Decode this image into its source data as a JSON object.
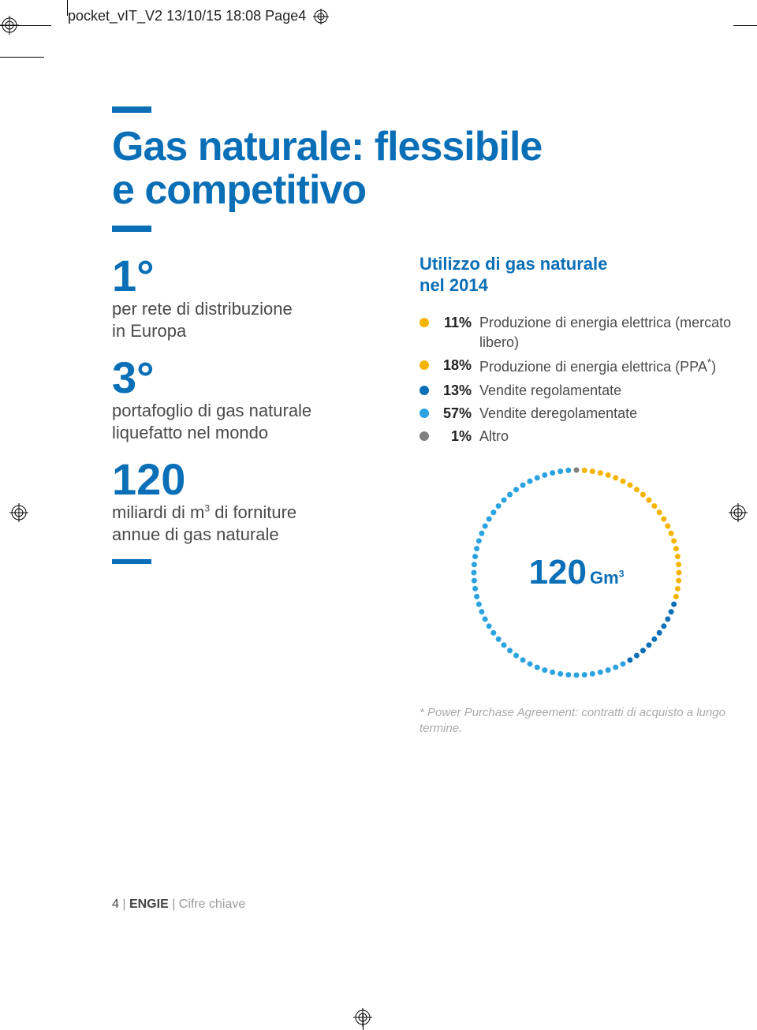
{
  "header": "pocket_vIT_V2  13/10/15  18:08  Page4",
  "title_l1": "Gas naturale: flessibile",
  "title_l2": "e competitivo",
  "stats": [
    {
      "num": "1°",
      "line1": "per rete di distribuzione",
      "line2": "in Europa"
    },
    {
      "num": "3°",
      "line1": "portafoglio di gas naturale",
      "line2": "liquefatto nel mondo"
    },
    {
      "num": "120",
      "line1": "miliardi di m",
      "sup": "3",
      "line1b": " di forniture",
      "line2": "annue di gas naturale"
    }
  ],
  "subhead_l1": "Utilizzo di gas naturale",
  "subhead_l2": "nel 2014",
  "legend": [
    {
      "color": "#f5b400",
      "pct": "11%",
      "label": "Produzione di energia elettrica (mercato libero)"
    },
    {
      "color": "#f5b400",
      "pct": "18%",
      "label": "Produzione di energia elettrica (PPA*)"
    },
    {
      "color": "#0a6fb6",
      "pct": "13%",
      "label": "Vendite regolamentate"
    },
    {
      "color": "#2aa3e0",
      "pct": "57%",
      "label": "Vendite deregolamentate"
    },
    {
      "color": "#808080",
      "pct": "1%",
      "label": "Altro"
    }
  ],
  "donut": {
    "value": "120",
    "unit": "Gm",
    "unit_sup": "3",
    "segments": [
      {
        "pct": 1,
        "color": "#808080"
      },
      {
        "pct": 11,
        "color": "#f5b400"
      },
      {
        "pct": 18,
        "color": "#f5b400"
      },
      {
        "pct": 13,
        "color": "#0a6fb6"
      },
      {
        "pct": 57,
        "color": "#2aa3e0"
      }
    ],
    "dot_count": 80,
    "radius": 130,
    "dot_size": 7
  },
  "footnote": "* Power Purchase Agreement: contratti di acquisto a lungo termine.",
  "footer": {
    "page": "4",
    "brand": "ENGIE",
    "section": "Cifre chiave"
  },
  "colors": {
    "brand_blue": "#0a6fb6",
    "light_blue": "#2aa3e0",
    "yellow": "#f5b400",
    "grey": "#808080",
    "text": "#4a4a4a",
    "muted": "#aaa"
  }
}
